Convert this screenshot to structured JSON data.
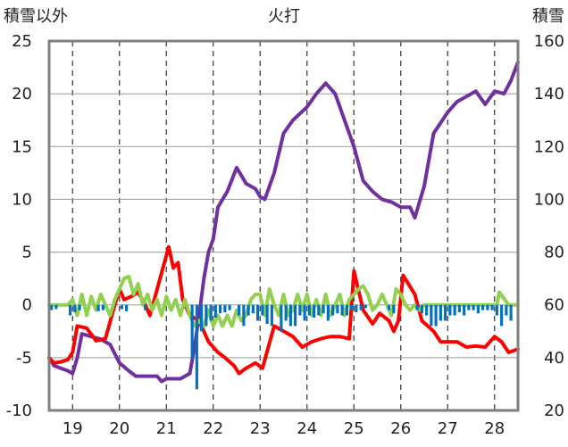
{
  "chart_data": {
    "type": "line",
    "title": "火打",
    "left_axis": {
      "label": "積雪以外",
      "ticks": [
        "25",
        "20",
        "15",
        "10",
        "5",
        "0",
        "-5",
        "-10"
      ],
      "ylim": [
        -10,
        25
      ]
    },
    "right_axis": {
      "label": "積雪",
      "ticks": [
        "160",
        "140",
        "120",
        "100",
        "80",
        "60",
        "40",
        "20"
      ],
      "ylim": [
        20,
        160
      ]
    },
    "x_ticks": [
      "19",
      "20",
      "21",
      "22",
      "23",
      "24",
      "25",
      "26",
      "27",
      "28"
    ],
    "xlim": [
      18.5,
      28.5
    ],
    "grid": "dashed vertical at day boundaries",
    "series": [
      {
        "color": "#7030a0",
        "axis": "right",
        "x": [
          18.5,
          18.6,
          18.75,
          18.9,
          19.0,
          19.1,
          19.2,
          19.4,
          19.6,
          19.8,
          20.0,
          20.2,
          20.35,
          20.45,
          20.6,
          20.8,
          20.9,
          21.0,
          21.1,
          21.3,
          21.5,
          21.6,
          21.7,
          21.8,
          21.9,
          22.0,
          22.1,
          22.3,
          22.5,
          22.7,
          22.9,
          23.0,
          23.1,
          23.3,
          23.5,
          23.7,
          24.0,
          24.2,
          24.4,
          24.6,
          24.8,
          25.0,
          25.2,
          25.4,
          25.6,
          25.8,
          26.0,
          26.2,
          26.3,
          26.5,
          26.7,
          27.0,
          27.2,
          27.4,
          27.6,
          27.8,
          28.0,
          28.2,
          28.35,
          28.5
        ],
        "values": [
          40,
          37,
          36,
          35,
          34,
          40,
          49,
          48,
          47,
          45,
          38,
          35,
          33,
          33,
          33,
          33,
          31,
          32,
          32,
          32,
          34,
          44,
          56,
          70,
          80,
          85,
          97,
          103,
          112,
          106,
          104,
          101,
          100,
          110,
          125,
          130,
          135,
          140,
          144,
          140,
          130,
          120,
          107,
          103,
          100,
          99,
          97,
          97,
          93,
          105,
          125,
          133,
          137,
          139,
          141,
          136,
          141,
          140,
          145,
          152
        ]
      },
      {
        "color": "#ff0000",
        "axis": "left",
        "x": [
          18.5,
          18.6,
          18.75,
          18.9,
          19.0,
          19.1,
          19.3,
          19.5,
          19.7,
          19.9,
          20.0,
          20.1,
          20.25,
          20.4,
          20.55,
          20.65,
          21.05,
          21.15,
          21.25,
          21.35,
          21.5,
          21.7,
          21.9,
          22.1,
          22.25,
          22.45,
          22.55,
          22.7,
          22.9,
          23.05,
          23.3,
          23.5,
          23.7,
          23.9,
          24.1,
          24.3,
          24.5,
          24.7,
          24.9,
          25.0,
          25.2,
          25.4,
          25.55,
          25.75,
          25.85,
          25.95,
          26.05,
          26.3,
          26.45,
          26.7,
          26.85,
          27.0,
          27.2,
          27.4,
          27.6,
          27.8,
          28.0,
          28.15,
          28.3,
          28.5
        ],
        "values": [
          -5,
          -5.5,
          -5.4,
          -5.2,
          -4.5,
          -2,
          -2.2,
          -3.4,
          -3.2,
          0,
          1.5,
          0.5,
          0.8,
          1.2,
          0,
          -1,
          5.5,
          3.5,
          4,
          0.5,
          -1,
          -1.5,
          -3.5,
          -4.5,
          -5,
          -5.8,
          -6.5,
          -6,
          -5.5,
          -6,
          -2,
          -2.5,
          -3,
          -4,
          -3.5,
          -3.2,
          -3,
          -3,
          -3.2,
          3.2,
          -0.5,
          -1.8,
          -0.8,
          -1.5,
          -2.5,
          -1.5,
          2.8,
          1,
          -1.5,
          -2.5,
          -3.5,
          -3.5,
          -3.5,
          -4,
          -3.9,
          -4,
          -3,
          -3.5,
          -4.5,
          -4.2
        ]
      },
      {
        "color": "#92d050",
        "axis": "left",
        "x": [
          18.5,
          18.65,
          18.8,
          18.9,
          19.0,
          19.1,
          19.2,
          19.3,
          19.4,
          19.5,
          19.6,
          19.7,
          19.8,
          19.9,
          20.0,
          20.1,
          20.2,
          20.3,
          20.4,
          20.5,
          20.6,
          20.7,
          20.8,
          20.9,
          21.0,
          21.1,
          21.2,
          21.3,
          21.4,
          21.5,
          21.6,
          21.7,
          21.8,
          21.9,
          22.0,
          22.1,
          22.2,
          22.3,
          22.4,
          22.5,
          22.6,
          22.7,
          22.8,
          22.9,
          23.0,
          23.1,
          23.2,
          23.3,
          23.4,
          23.5,
          23.6,
          23.7,
          23.8,
          23.9,
          24.0,
          24.1,
          24.2,
          24.3,
          24.4,
          24.5,
          24.6,
          24.7,
          24.8,
          24.9,
          25.0,
          25.1,
          25.2,
          25.3,
          25.4,
          25.5,
          25.6,
          25.7,
          25.8,
          25.9,
          26.0,
          26.1,
          26.2,
          26.3,
          26.4,
          26.5,
          26.7,
          26.9,
          27.1,
          27.3,
          27.5,
          27.7,
          27.9,
          28.05,
          28.1,
          28.3,
          28.5
        ],
        "values": [
          0,
          0,
          0,
          0,
          0.5,
          -1,
          1,
          -1,
          0.8,
          -0.5,
          1,
          0,
          -1,
          0.5,
          1.5,
          2.5,
          2.7,
          1,
          2,
          0,
          1,
          -0.5,
          0.5,
          -1,
          0.8,
          -0.5,
          0.5,
          -1,
          0.5,
          -1,
          -2,
          -1.5,
          -2,
          -0.5,
          -2,
          -1,
          -2,
          -1,
          -2,
          -0.5,
          -1.5,
          -1,
          0.5,
          1,
          1,
          -1,
          1.5,
          0,
          -1,
          1,
          -1,
          -0.5,
          1,
          -0.5,
          1,
          -1,
          0.5,
          -1,
          1,
          -1,
          0,
          1,
          -1,
          0.5,
          1,
          1.5,
          1.8,
          1,
          -0.5,
          0,
          1,
          0,
          -1,
          1.5,
          1,
          0,
          -0.5,
          0,
          -0.5,
          0,
          0,
          0,
          0,
          0,
          0,
          0,
          0,
          0,
          1.2,
          0,
          0
        ]
      },
      {
        "color": "#0070c0",
        "axis": "left",
        "type": "bar",
        "x": [
          18.55,
          18.65,
          18.95,
          19.05,
          19.15,
          19.55,
          19.65,
          20.05,
          20.15,
          20.55,
          21.55,
          21.65,
          21.75,
          21.85,
          21.95,
          22.05,
          22.15,
          22.25,
          22.35,
          22.55,
          22.65,
          22.75,
          22.85,
          22.95,
          23.05,
          23.15,
          23.25,
          23.45,
          23.55,
          23.65,
          23.75,
          23.85,
          23.95,
          24.05,
          24.15,
          24.25,
          24.35,
          24.45,
          24.55,
          24.65,
          24.75,
          24.85,
          24.95,
          25.05,
          25.15,
          25.25,
          25.75,
          25.85,
          26.35,
          26.45,
          26.55,
          26.65,
          26.75,
          26.85,
          26.95,
          27.05,
          27.15,
          27.25,
          27.35,
          27.45,
          27.55,
          27.65,
          27.75,
          27.85,
          27.95,
          28.05,
          28.15,
          28.25,
          28.35
        ],
        "values": [
          -0.5,
          -0.4,
          -1,
          -0.7,
          -0.5,
          -0.6,
          -0.5,
          -0.4,
          -0.6,
          -0.5,
          -5,
          -8,
          -2.5,
          -2,
          -1.5,
          -1.2,
          -0.8,
          -0.7,
          -0.5,
          -1,
          -2,
          -1,
          -0.8,
          -1.5,
          -1,
          -1.8,
          -2,
          -2.5,
          -1.5,
          -2,
          -2,
          -1,
          -1.5,
          -1,
          -1.2,
          -1,
          -0.8,
          -1.5,
          -1,
          -0.8,
          -1,
          -1,
          -0.5,
          -0.7,
          -0.5,
          -0.3,
          -0.5,
          -0.8,
          -0.5,
          -0.8,
          -1,
          -2,
          -2,
          -1.5,
          -1.5,
          -1,
          -1,
          -0.7,
          -1,
          -0.5,
          -0.5,
          -0.8,
          -0.5,
          -0.5,
          -0.5,
          -1,
          -2,
          -1,
          -1.5
        ]
      }
    ]
  }
}
